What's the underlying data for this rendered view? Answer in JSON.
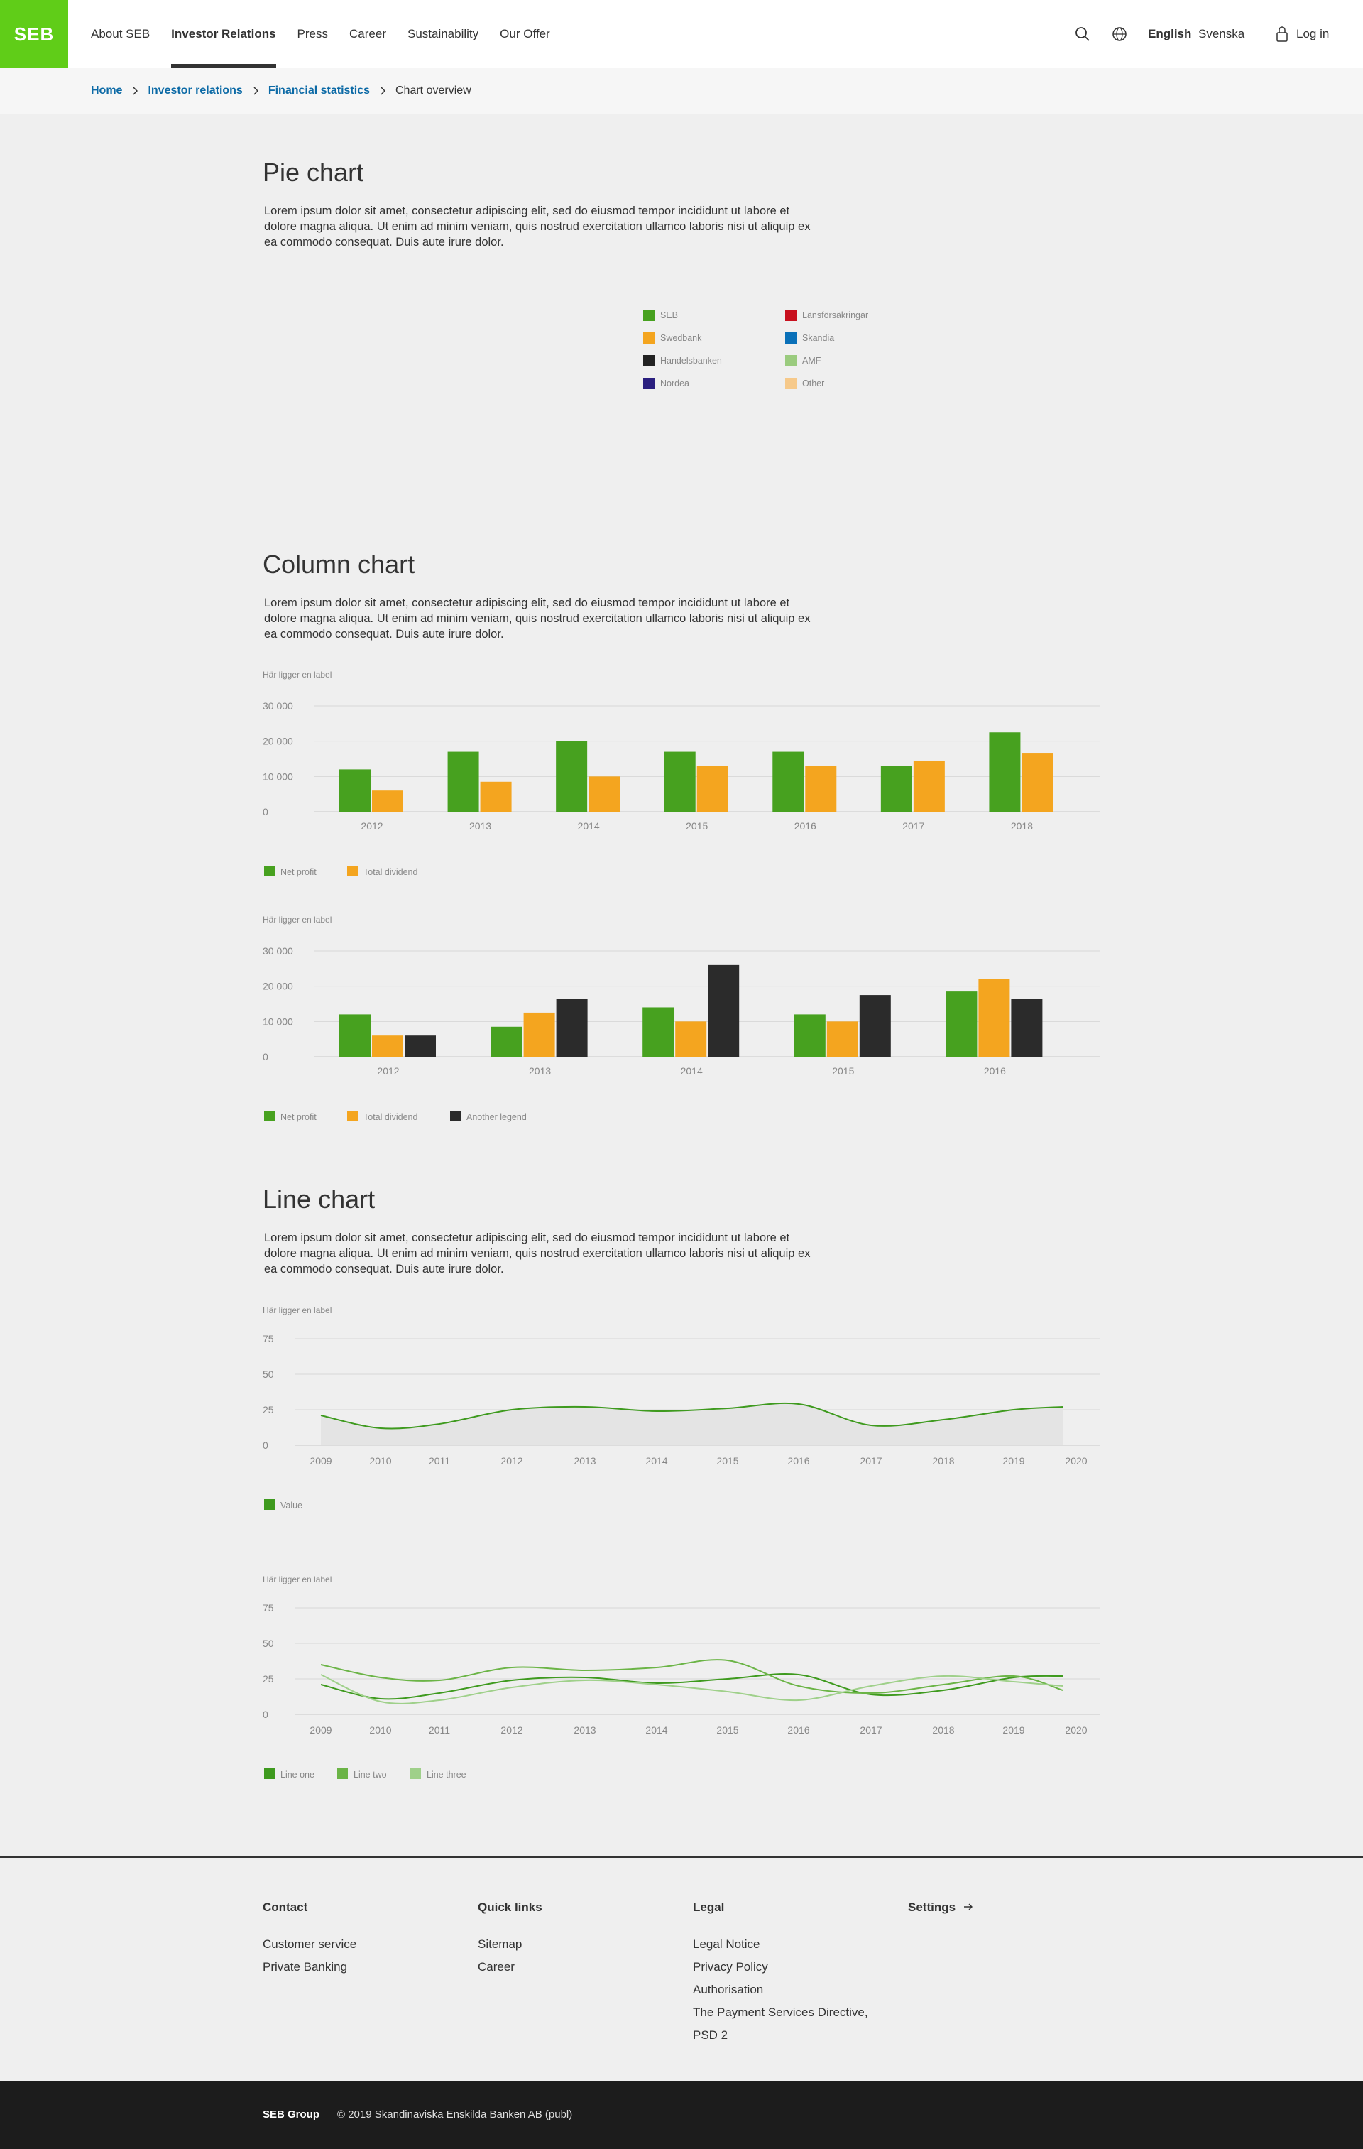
{
  "header": {
    "logo": "SEB",
    "nav": [
      "About SEB",
      "Investor Relations",
      "Press",
      "Career",
      "Sustainability",
      "Our Offer"
    ],
    "active_nav": "Investor Relations",
    "lang_active": "English",
    "lang_other": "Svenska",
    "login_label": "Log in"
  },
  "breadcrumb": {
    "items": [
      "Home",
      "Investor relations",
      "Financial statistics"
    ],
    "current": "Chart overview"
  },
  "sections": {
    "pie": {
      "title": "Pie chart",
      "text": "Lorem ipsum dolor sit amet, consectetur adipiscing elit, sed do eiusmod tempor incididunt ut labore et dolore magna aliqua. Ut enim ad minim veniam, quis nostrud exercitation ullamco laboris nisi ut aliquip ex ea commodo consequat. Duis aute irure dolor."
    },
    "column": {
      "title": "Column chart",
      "text": "Lorem ipsum dolor sit amet, consectetur adipiscing elit, sed do eiusmod tempor incididunt ut labore et dolore magna aliqua. Ut enim ad minim veniam, quis nostrud exercitation ullamco laboris nisi ut aliquip ex ea commodo consequat. Duis aute irure dolor."
    },
    "line": {
      "title": "Line chart",
      "text": "Lorem ipsum dolor sit amet, consectetur adipiscing elit, sed do eiusmod tempor incididunt ut labore et dolore magna aliqua. Ut enim ad minim veniam, quis nostrud exercitation ullamco laboris nisi ut aliquip ex ea commodo consequat. Duis aute irure dolor."
    }
  },
  "colors": {
    "green": "#47a11f",
    "orange": "#f4a51f",
    "black": "#2b2b2b",
    "line_green": "#3e9a1e",
    "line_green2": "#6bb446",
    "line_green3": "#9fd08a"
  },
  "chart_data": [
    {
      "type": "pie",
      "title": "",
      "legend": [
        {
          "name": "SEB",
          "color": "#47a11f"
        },
        {
          "name": "Länsförsäkringar",
          "color": "#c8101e"
        },
        {
          "name": "Swedbank",
          "color": "#f4a51f"
        },
        {
          "name": "Skandia",
          "color": "#0a70b8"
        },
        {
          "name": "Handelsbanken",
          "color": "#222222"
        },
        {
          "name": "AMF",
          "color": "#9acb7e"
        },
        {
          "name": "Nordea",
          "color": "#2a1f7f"
        },
        {
          "name": "Other",
          "color": "#f6c98a"
        }
      ]
    },
    {
      "type": "bar",
      "title": "Här  ligger en label",
      "categories": [
        "2012",
        "2013",
        "2014",
        "2015",
        "2016",
        "2017",
        "2018"
      ],
      "series": [
        {
          "name": "Net profit",
          "values": [
            12000,
            17000,
            20000,
            17000,
            17000,
            13000,
            22500
          ]
        },
        {
          "name": "Total dividend",
          "values": [
            6000,
            8500,
            10000,
            13000,
            13000,
            14500,
            16500
          ]
        }
      ],
      "yticks": [
        "0",
        "10 000",
        "20 000",
        "30 000"
      ],
      "ylim": [
        0,
        30000
      ]
    },
    {
      "type": "bar",
      "title": "Här  ligger en label",
      "categories": [
        "2012",
        "2013",
        "2014",
        "2015",
        "2016"
      ],
      "series": [
        {
          "name": "Net profit",
          "values": [
            12000,
            8500,
            14000,
            12000,
            18500
          ]
        },
        {
          "name": "Total dividend",
          "values": [
            6000,
            12500,
            10000,
            10000,
            22000
          ]
        },
        {
          "name": "Another legend",
          "values": [
            6000,
            16500,
            26000,
            17500,
            16500
          ]
        }
      ],
      "yticks": [
        "0",
        "10 000",
        "20 000",
        "30 000"
      ],
      "ylim": [
        0,
        30000
      ]
    },
    {
      "type": "area",
      "title": "Här  ligger en label",
      "x": [
        "2009",
        "2010",
        "2011",
        "2012",
        "2013",
        "2014",
        "2015",
        "2016",
        "2017",
        "2018",
        "2019",
        "2020"
      ],
      "series": [
        {
          "name": "Value",
          "values": [
            21,
            12,
            15,
            25,
            27,
            24,
            26,
            29,
            14,
            18,
            25,
            27
          ]
        }
      ],
      "yticks": [
        "0",
        "25",
        "50",
        "75"
      ],
      "ylim": [
        0,
        75
      ]
    },
    {
      "type": "line",
      "title": "Här  ligger en label",
      "x": [
        "2009",
        "2010",
        "2011",
        "2012",
        "2013",
        "2014",
        "2015",
        "2016",
        "2017",
        "2018",
        "2019",
        "2020"
      ],
      "series": [
        {
          "name": "Line one",
          "values": [
            21,
            11,
            15,
            24,
            26,
            22,
            25,
            28,
            14,
            17,
            26,
            27
          ]
        },
        {
          "name": "Line two",
          "values": [
            35,
            26,
            24,
            33,
            31,
            33,
            38,
            20,
            15,
            21,
            27,
            17
          ]
        },
        {
          "name": "Line three",
          "values": [
            28,
            9,
            10,
            19,
            24,
            21,
            16,
            10,
            20,
            27,
            23,
            20
          ]
        }
      ],
      "yticks": [
        "0",
        "25",
        "50",
        "75"
      ],
      "ylim": [
        0,
        75
      ]
    }
  ],
  "footer": {
    "contact": {
      "title": "Contact",
      "links": [
        "Customer service",
        "Private Banking"
      ]
    },
    "quick": {
      "title": "Quick links",
      "links": [
        "Sitemap",
        "Career"
      ]
    },
    "legal": {
      "title": "Legal",
      "links": [
        "Legal Notice",
        "Privacy Policy",
        "Authorisation",
        "The Payment Services Directive,",
        "PSD 2"
      ]
    },
    "settings": "Settings"
  },
  "bottom": {
    "group": "SEB Group",
    "copyright": "© 2019 Skandinaviska Enskilda Banken AB (publ)"
  }
}
